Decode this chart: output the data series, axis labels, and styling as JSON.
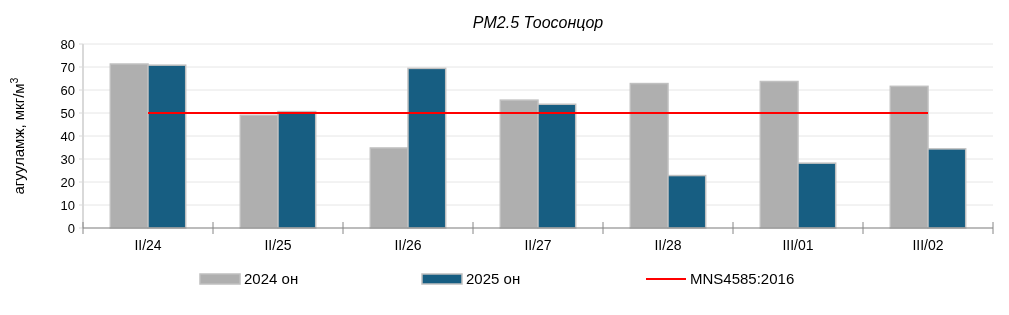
{
  "chart_data": {
    "type": "bar",
    "title": "PM2.5 Тоосонцор",
    "ylabel": "агууламж, мкг/м$^{3}$",
    "categories": [
      "II/24",
      "II/25",
      "II/26",
      "II/27",
      "II/28",
      "III/01",
      "III/02"
    ],
    "series": [
      {
        "name": "2024 он",
        "color": "#afafaf",
        "values": [
          71.3,
          49,
          34.8,
          55.6,
          62.8,
          63.7,
          61.6
        ]
      },
      {
        "name": "2025 он",
        "color": "#175e82",
        "values": [
          70.8,
          50.6,
          69.4,
          53.8,
          22.8,
          28.2,
          34.4
        ]
      },
      {
        "name": "MNS4585:2016",
        "type": "line",
        "color": "#ff0000",
        "values": [
          50,
          50,
          50,
          50,
          50,
          50,
          50
        ]
      }
    ],
    "ylim": [
      0,
      80
    ],
    "yticks": [
      0,
      10,
      20,
      30,
      40,
      50,
      60,
      70,
      80
    ],
    "grid": "y",
    "legend": "bottom",
    "marker": "none"
  }
}
